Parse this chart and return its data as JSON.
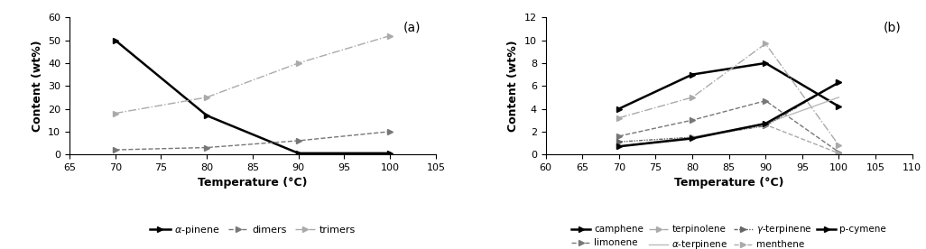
{
  "panel_a": {
    "temperatures": [
      70,
      80,
      90,
      100
    ],
    "alpha_pinene": [
      50,
      17,
      0.5,
      0.5
    ],
    "dimers": [
      2,
      3,
      6,
      10
    ],
    "trimers": [
      18,
      25,
      40,
      52
    ],
    "ylim": [
      0,
      60
    ],
    "xlim": [
      65,
      105
    ],
    "xticks": [
      65,
      70,
      75,
      80,
      85,
      90,
      95,
      100,
      105
    ],
    "yticks": [
      0,
      10,
      20,
      30,
      40,
      50,
      60
    ],
    "xlabel": "Temperature (°C)",
    "ylabel": "Content (wt%)",
    "label": "(a)"
  },
  "panel_b": {
    "temperatures": [
      70,
      80,
      90,
      100
    ],
    "camphene": [
      4.0,
      7.0,
      8.0,
      4.2
    ],
    "limonene": [
      1.6,
      3.0,
      4.7,
      0.2
    ],
    "terpinolene": [
      3.2,
      5.0,
      9.7,
      0.8
    ],
    "alpha_terpinene": [
      0.7,
      1.5,
      2.7,
      5.0
    ],
    "gamma_terpinene": [
      1.1,
      1.5,
      2.5,
      6.3
    ],
    "menthene": [
      0.7,
      1.5,
      2.6,
      0.1
    ],
    "p_cymene": [
      0.7,
      1.4,
      2.7,
      6.3
    ],
    "ylim": [
      0,
      12
    ],
    "xlim": [
      60,
      110
    ],
    "xticks": [
      60,
      65,
      70,
      75,
      80,
      85,
      90,
      95,
      100,
      105,
      110
    ],
    "yticks": [
      0,
      2,
      4,
      6,
      8,
      10,
      12
    ],
    "xlabel": "Temperature (°C)",
    "ylabel": "Content (wt%)",
    "label": "(b)"
  }
}
